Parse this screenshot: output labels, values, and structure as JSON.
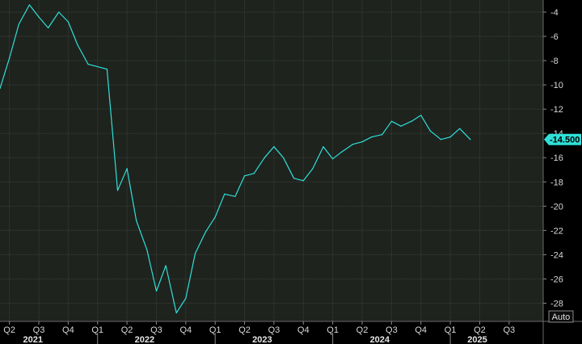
{
  "chart_data": {
    "type": "line",
    "title": "",
    "xlabel": "",
    "ylabel": "",
    "ylim": [
      -29.5,
      -3
    ],
    "y_ticks": [
      -4,
      -6,
      -8,
      -10,
      -12,
      -14,
      -16,
      -18,
      -20,
      -22,
      -24,
      -26,
      -28
    ],
    "x_domain": [
      2021.17,
      2025.79
    ],
    "x_ticks": [
      {
        "label": "Q2",
        "x": 2021.25
      },
      {
        "label": "Q3",
        "x": 2021.5
      },
      {
        "label": "Q4",
        "x": 2021.75
      },
      {
        "label": "Q1",
        "x": 2022.0
      },
      {
        "label": "Q2",
        "x": 2022.25
      },
      {
        "label": "Q3",
        "x": 2022.5
      },
      {
        "label": "Q4",
        "x": 2022.75
      },
      {
        "label": "Q1",
        "x": 2023.0
      },
      {
        "label": "Q2",
        "x": 2023.25
      },
      {
        "label": "Q3",
        "x": 2023.5
      },
      {
        "label": "Q4",
        "x": 2023.75
      },
      {
        "label": "Q1",
        "x": 2024.0
      },
      {
        "label": "Q2",
        "x": 2024.25
      },
      {
        "label": "Q3",
        "x": 2024.5
      },
      {
        "label": "Q4",
        "x": 2024.75
      },
      {
        "label": "Q1",
        "x": 2025.0
      },
      {
        "label": "Q2",
        "x": 2025.25
      },
      {
        "label": "Q3",
        "x": 2025.5
      }
    ],
    "years": [
      {
        "label": "2021",
        "x": 2021.45
      },
      {
        "label": "2022",
        "x": 2022.4
      },
      {
        "label": "2023",
        "x": 2023.4
      },
      {
        "label": "2024",
        "x": 2024.4
      },
      {
        "label": "2025",
        "x": 2025.23
      }
    ],
    "grid": true,
    "series": [
      {
        "color": "#2fe0d8",
        "x": [
          2021.17,
          2021.25,
          2021.33,
          2021.42,
          2021.5,
          2021.58,
          2021.67,
          2021.75,
          2021.83,
          2021.92,
          2022.0,
          2022.08,
          2022.17,
          2022.25,
          2022.33,
          2022.42,
          2022.5,
          2022.58,
          2022.67,
          2022.75,
          2022.83,
          2022.92,
          2023.0,
          2023.08,
          2023.17,
          2023.25,
          2023.33,
          2023.42,
          2023.5,
          2023.58,
          2023.67,
          2023.75,
          2023.83,
          2023.92,
          2024.0,
          2024.08,
          2024.17,
          2024.25,
          2024.33,
          2024.42,
          2024.5,
          2024.58,
          2024.67,
          2024.75,
          2024.83,
          2024.92,
          2025.0,
          2025.08,
          2025.17
        ],
        "y": [
          -10.3,
          -7.8,
          -5.0,
          -3.4,
          -4.4,
          -5.3,
          -4.0,
          -4.8,
          -6.7,
          -8.3,
          -8.5,
          -8.7,
          -18.7,
          -16.9,
          -21.2,
          -23.6,
          -27.0,
          -24.9,
          -28.8,
          -27.6,
          -23.9,
          -22.1,
          -20.9,
          -19.0,
          -19.2,
          -17.5,
          -17.3,
          -16.0,
          -15.1,
          -16.0,
          -17.7,
          -17.9,
          -16.9,
          -15.1,
          -16.1,
          -15.5,
          -14.9,
          -14.7,
          -14.3,
          -14.1,
          -13.0,
          -13.4,
          -13.0,
          -12.5,
          -13.8,
          -14.5,
          -14.3,
          -13.6,
          -14.5
        ]
      }
    ],
    "last_value": {
      "label": "-14.500",
      "y": -14.5
    }
  },
  "autoscale_button": "Auto",
  "colors": {
    "background": "#000000",
    "plot_bg": "#1e231e",
    "grid": "#3a4038",
    "line": "#2fe0d8",
    "marker_bg": "#2fe0d8",
    "marker_text": "#000000",
    "axis_text": "#d8d8d8"
  }
}
